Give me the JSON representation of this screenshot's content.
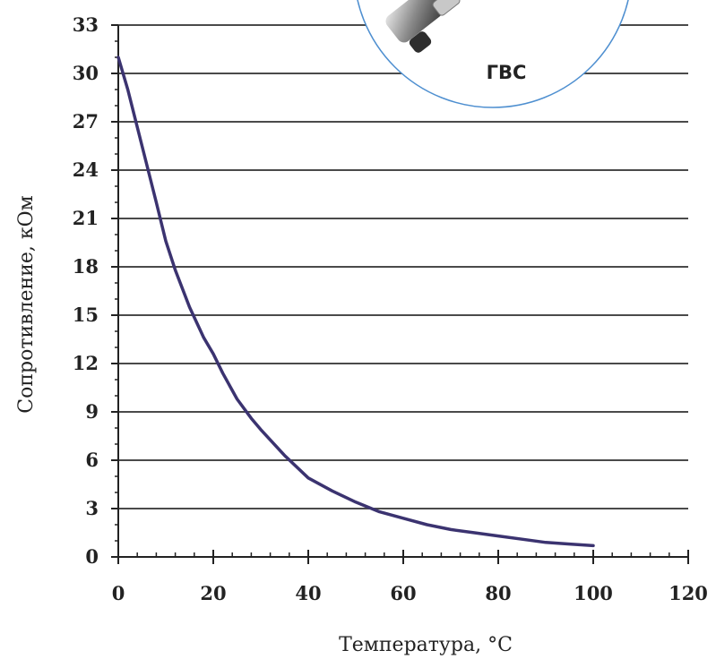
{
  "chart_data": {
    "type": "line",
    "xlabel": "Температура, °C",
    "ylabel": "Сопротивление, кОм",
    "xlim": [
      0,
      120
    ],
    "ylim": [
      0,
      33
    ],
    "xticks": [
      0,
      20,
      40,
      60,
      80,
      100,
      120
    ],
    "yticks": [
      0,
      3,
      6,
      9,
      12,
      15,
      18,
      21,
      24,
      27,
      30,
      33
    ],
    "grid": "horizontal",
    "legend": "none",
    "series": [
      {
        "color": "#3b3370",
        "x": [
          0,
          2,
          5,
          8,
          10,
          12,
          15,
          18,
          20,
          22,
          25,
          28,
          30,
          35,
          40,
          45,
          50,
          55,
          60,
          65,
          70,
          75,
          80,
          85,
          90,
          95,
          100
        ],
        "y": [
          31.0,
          29.0,
          25.5,
          22.0,
          19.6,
          17.8,
          15.5,
          13.6,
          12.6,
          11.4,
          9.8,
          8.6,
          7.9,
          6.3,
          4.9,
          4.1,
          3.4,
          2.8,
          2.4,
          2.0,
          1.7,
          1.5,
          1.3,
          1.1,
          0.9,
          0.8,
          0.7
        ]
      }
    ]
  },
  "badge": {
    "label": "ГВС"
  },
  "colors": {
    "line": "#3b3370",
    "grid": "#4a4a4a",
    "axis": "#222222",
    "badge_border": "#4e8fd0"
  }
}
